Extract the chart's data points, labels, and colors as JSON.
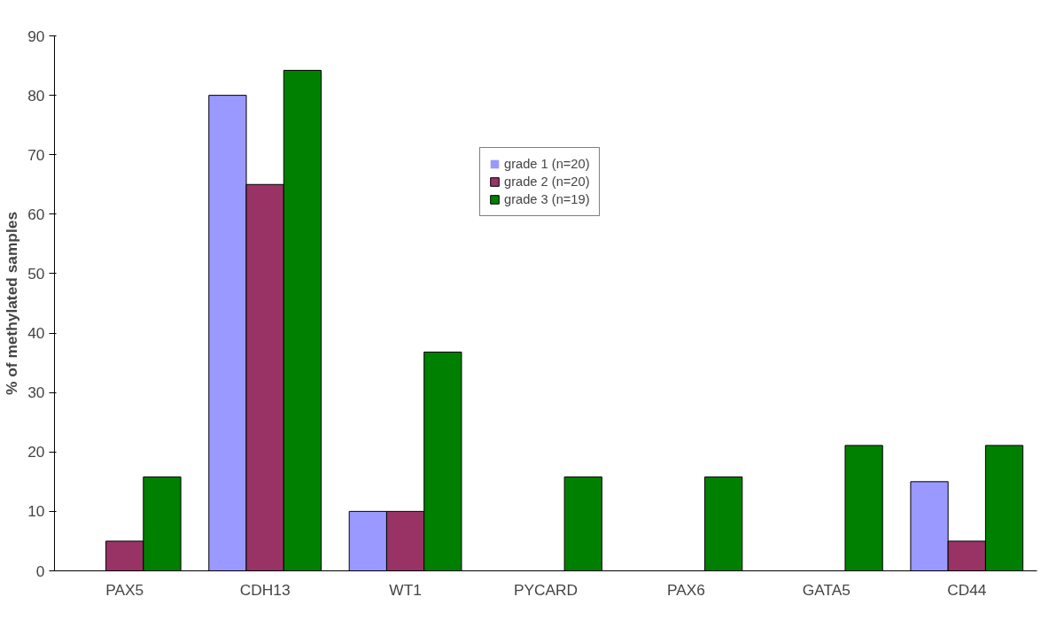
{
  "chart_data": {
    "type": "bar",
    "ylabel": "% of methylated samples",
    "categories": [
      "PAX5",
      "CDH13",
      "WT1",
      "PYCARD",
      "PAX6",
      "GATA5",
      "CD44"
    ],
    "series": [
      {
        "name": "grade 1 (n=20)",
        "color": "#9999ff",
        "values": [
          0,
          80,
          10,
          0,
          0,
          0,
          15
        ]
      },
      {
        "name": "grade 2 (n=20)",
        "color": "#993366",
        "values": [
          5,
          65,
          10,
          0,
          0,
          0,
          5
        ]
      },
      {
        "name": "grade 3 (n=19)",
        "color": "#008000",
        "values": [
          15.8,
          84.2,
          36.8,
          15.8,
          15.8,
          21.1,
          21.1
        ]
      }
    ],
    "ylim": [
      0,
      90
    ],
    "yticks": [
      0,
      10,
      20,
      30,
      40,
      50,
      60,
      70,
      80,
      90
    ],
    "grid": false,
    "legend": "top"
  }
}
